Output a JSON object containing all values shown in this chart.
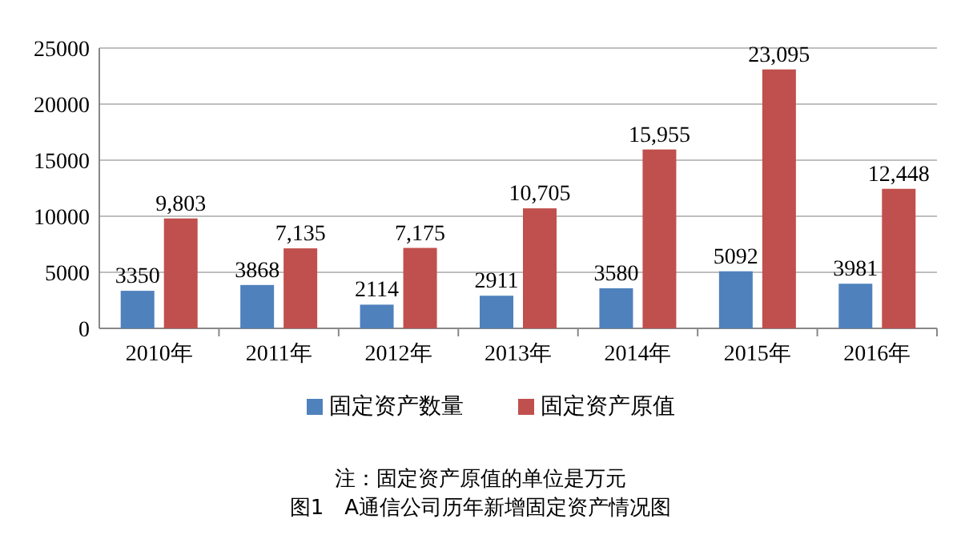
{
  "chart_data": {
    "type": "bar",
    "categories": [
      "2010年",
      "2011年",
      "2012年",
      "2013年",
      "2014年",
      "2015年",
      "2016年"
    ],
    "series": [
      {
        "name": "固定资产数量",
        "color": "#4f81bd",
        "values": [
          3350,
          3868,
          2114,
          2911,
          3580,
          5092,
          3981
        ],
        "value_labels": [
          "3350",
          "3868",
          "2114",
          "2911",
          "3580",
          "5092",
          "3981"
        ]
      },
      {
        "name": "固定资产原值",
        "color": "#c0504d",
        "values": [
          9803,
          7135,
          7175,
          10705,
          15955,
          23095,
          12448
        ],
        "value_labels": [
          "9,803",
          "7,135",
          "7,175",
          "10,705",
          "15,955",
          "23,095",
          "12,448"
        ]
      }
    ],
    "ylim": [
      0,
      25000
    ],
    "yticks": [
      0,
      5000,
      10000,
      15000,
      20000,
      25000
    ],
    "grid": "y",
    "legend": "bottom",
    "annotations": [
      "注：固定资产原值的单位是万元",
      "图1　A通信公司历年新增固定资产情况图"
    ]
  }
}
